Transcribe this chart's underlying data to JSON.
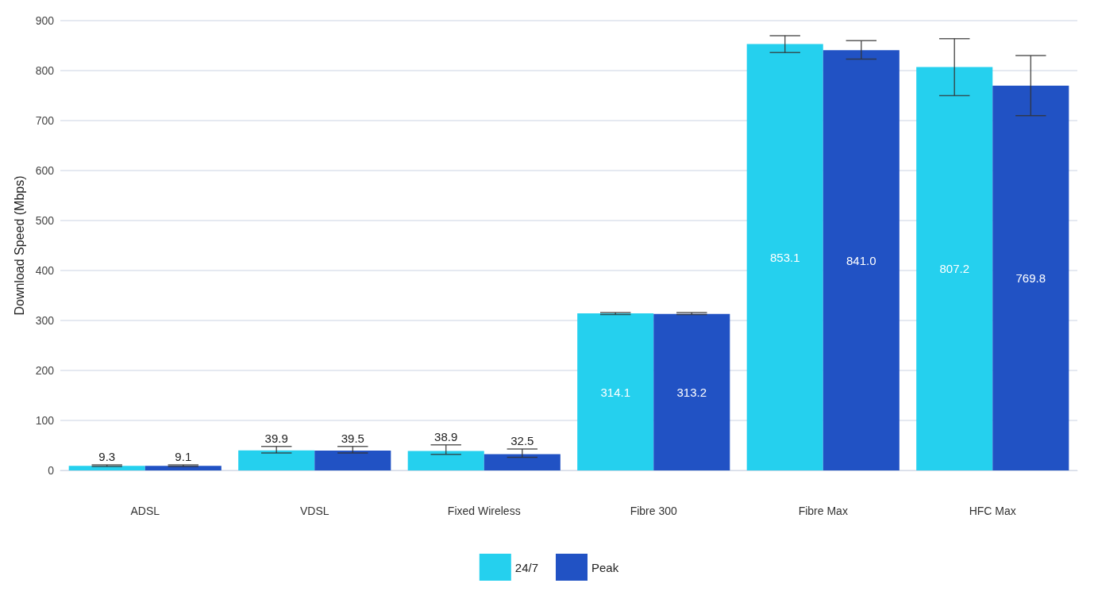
{
  "chart_data": {
    "type": "bar",
    "ylabel": "Download Speed (Mbps)",
    "categories": [
      "ADSL",
      "VDSL",
      "Fixed Wireless",
      "Fibre 300",
      "Fibre Max",
      "HFC Max"
    ],
    "series": [
      {
        "name": "24/7",
        "color": "#25d0ee",
        "values": [
          9.3,
          39.9,
          38.9,
          314.1,
          853.1,
          807.2
        ],
        "value_labels": [
          "9.3",
          "39.9",
          "38.9",
          "314.1",
          "853.1",
          "807.2"
        ],
        "errors": [
          [
            8,
            11
          ],
          [
            35,
            48
          ],
          [
            32,
            51
          ],
          [
            312,
            316
          ],
          [
            836,
            870
          ],
          [
            750,
            864
          ]
        ]
      },
      {
        "name": "Peak",
        "color": "#2152c4",
        "values": [
          9.1,
          39.5,
          32.5,
          313.2,
          841.0,
          769.8
        ],
        "value_labels": [
          "9.1",
          "39.5",
          "32.5",
          "313.2",
          "841.0",
          "769.8"
        ],
        "errors": [
          [
            8,
            11
          ],
          [
            35,
            48
          ],
          [
            26,
            43
          ],
          [
            312,
            316
          ],
          [
            823,
            860
          ],
          [
            710,
            830
          ]
        ]
      }
    ],
    "ylim": [
      0,
      900
    ],
    "yticks": [
      0,
      100,
      200,
      300,
      400,
      500,
      600,
      700,
      800,
      900
    ],
    "grid": "y",
    "legend": "bottom"
  }
}
